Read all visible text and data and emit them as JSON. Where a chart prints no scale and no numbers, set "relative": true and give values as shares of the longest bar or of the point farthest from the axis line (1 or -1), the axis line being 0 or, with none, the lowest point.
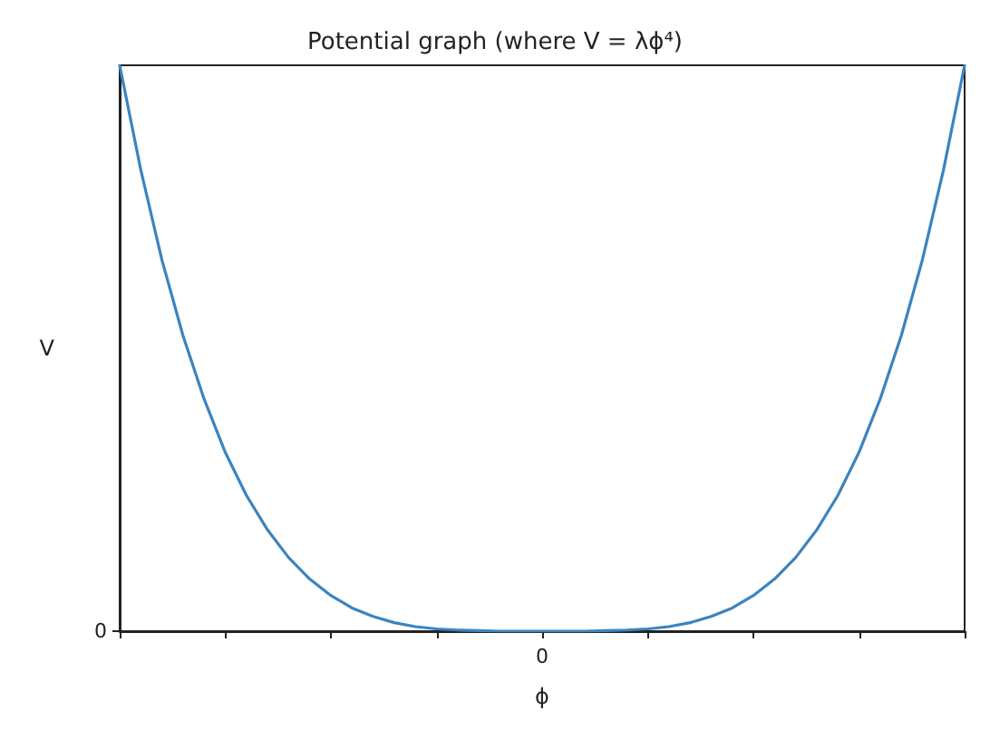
{
  "chart_data": {
    "type": "line",
    "title": "Potential graph (where V = λϕ⁴)",
    "xlabel": "ϕ",
    "ylabel": "V",
    "relative": true,
    "marker": "none",
    "line_style": "solid",
    "categories": [
      null,
      null,
      null,
      null,
      null,
      null,
      null,
      null,
      null,
      null,
      null,
      null,
      null,
      null,
      null,
      null,
      null,
      null,
      null,
      null,
      null,
      null,
      null,
      null,
      null,
      null,
      null,
      null,
      null,
      null,
      null,
      null,
      null,
      null,
      null,
      null,
      null,
      null,
      null,
      null,
      null
    ],
    "series": [
      {
        "color": "#3b84c0",
        "values": [
          1,
          0.815,
          0.656,
          0.522,
          0.41,
          0.316,
          0.24,
          0.179,
          0.13,
          0.092,
          0.063,
          0.041,
          0.026,
          0.015,
          0.008,
          0.004,
          0.002,
          0.001,
          0,
          0,
          0,
          0,
          0,
          0.001,
          0.002,
          0.004,
          0.008,
          0.015,
          0.026,
          0.041,
          0.063,
          0.092,
          0.13,
          0.179,
          0.24,
          0.316,
          0.41,
          0.522,
          0.656,
          0.815,
          1
        ]
      }
    ],
    "annotations": [
      "0",
      "0"
    ]
  }
}
